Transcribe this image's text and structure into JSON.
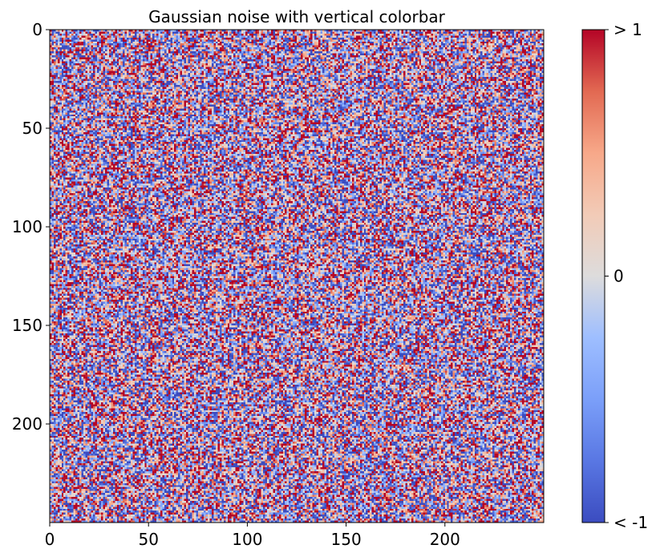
{
  "chart_data": {
    "type": "heatmap",
    "title": "Gaussian noise with vertical colorbar",
    "xlabel": "",
    "ylabel": "",
    "rows": 250,
    "cols": 250,
    "distribution": "gaussian",
    "mean": 0,
    "std": 1,
    "xlim": [
      0,
      250
    ],
    "ylim": [
      250,
      0
    ],
    "x_ticks": [
      0,
      50,
      100,
      150,
      200
    ],
    "x_tick_labels": [
      "0",
      "50",
      "100",
      "150",
      "200"
    ],
    "y_ticks": [
      0,
      50,
      100,
      150,
      200
    ],
    "y_tick_labels": [
      "0",
      "50",
      "100",
      "150",
      "200"
    ],
    "colormap": "coolwarm",
    "colorbar": {
      "orientation": "vertical",
      "placement": "right",
      "vmin": -1,
      "vmax": 1,
      "ticks": [
        -1,
        0,
        1
      ],
      "tick_labels": [
        "< -1",
        "0",
        "> 1"
      ],
      "color_min": "#3b4cc0",
      "color_mid": "#dddddd",
      "color_max": "#b40426"
    },
    "grid": false
  }
}
